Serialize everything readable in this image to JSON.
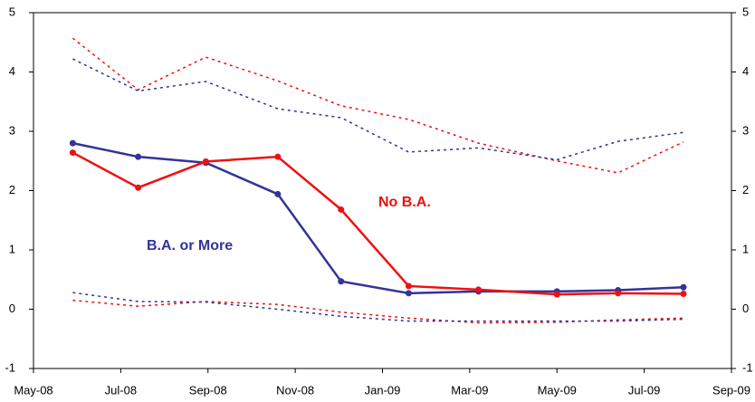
{
  "chart_data": {
    "type": "line",
    "annotations": [
      {
        "text": "No B.A.",
        "color": "#ee1111"
      },
      {
        "text": "B.A. or More",
        "color": "#333399"
      }
    ],
    "x": [
      0.9,
      2.4,
      3.95,
      5.6,
      7.05,
      8.6,
      10.2,
      12.0,
      13.4,
      14.9
    ],
    "xlim": [
      0,
      16
    ],
    "xticks": [
      {
        "value": 0,
        "label": "May-08"
      },
      {
        "value": 2,
        "label": "Jul-08"
      },
      {
        "value": 4,
        "label": "Sep-08"
      },
      {
        "value": 6,
        "label": "Nov-08"
      },
      {
        "value": 8,
        "label": "Jan-09"
      },
      {
        "value": 10,
        "label": "Mar-09"
      },
      {
        "value": 12,
        "label": "May-09"
      },
      {
        "value": 14,
        "label": "Jul-09"
      },
      {
        "value": 16,
        "label": "Sep-09"
      }
    ],
    "ylim": [
      -1,
      5
    ],
    "yticks": [
      -1,
      0,
      1,
      2,
      3,
      4,
      5
    ],
    "y2lim": [
      -1,
      5
    ],
    "y2ticks": [
      -1,
      0,
      1,
      2,
      3,
      4,
      5
    ],
    "series": [
      {
        "color": "#ee1111",
        "dashed": true,
        "values": [
          4.57,
          3.7,
          4.25,
          3.85,
          3.43,
          3.2,
          2.8,
          2.5,
          2.3,
          2.82
        ]
      },
      {
        "color": "#333399",
        "dashed": true,
        "values": [
          4.22,
          3.68,
          3.84,
          3.38,
          3.23,
          2.65,
          2.72,
          2.52,
          2.83,
          2.98
        ]
      },
      {
        "color": "#ee1111",
        "dashed": true,
        "values": [
          0.15,
          0.05,
          0.13,
          0.08,
          -0.05,
          -0.15,
          -0.23,
          -0.22,
          -0.18,
          -0.15
        ]
      },
      {
        "color": "#333399",
        "dashed": true,
        "values": [
          0.28,
          0.13,
          0.12,
          0.0,
          -0.12,
          -0.2,
          -0.2,
          -0.2,
          -0.2,
          -0.17
        ]
      },
      {
        "color": "#333399",
        "markers": true,
        "values": [
          2.8,
          2.57,
          2.47,
          1.94,
          0.47,
          0.27,
          0.3,
          0.3,
          0.32,
          0.37
        ]
      },
      {
        "color": "#ee1111",
        "markers": true,
        "values": [
          2.64,
          2.05,
          2.49,
          2.57,
          1.68,
          0.39,
          0.33,
          0.25,
          0.27,
          0.26
        ]
      }
    ]
  }
}
